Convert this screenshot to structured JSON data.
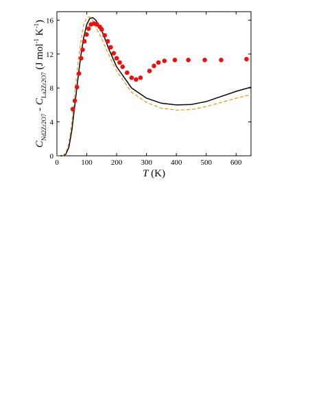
{
  "chart_data": {
    "type": "scatter",
    "x_label": [
      "T",
      " (K)"
    ],
    "y_label": [
      "C",
      "Nd2Zr2O7",
      " - ",
      "C",
      "La2Zr2O7",
      " (J mol",
      "-1",
      " K",
      "-1",
      ")"
    ],
    "xlim": [
      0,
      650
    ],
    "xticks": [
      0,
      100,
      200,
      300,
      400,
      500,
      600
    ],
    "ylim": [
      0,
      17
    ],
    "yticks": [
      0,
      4,
      8,
      12,
      16
    ],
    "series": [
      {
        "kind": "line",
        "color": "#000000",
        "dash": false,
        "x": [
          0,
          20,
          30,
          40,
          50,
          60,
          70,
          80,
          90,
          100,
          110,
          120,
          130,
          150,
          175,
          200,
          250,
          300,
          350,
          400,
          450,
          500,
          550,
          600,
          650
        ],
        "values": [
          0,
          0,
          0.2,
          1,
          3,
          6,
          9,
          11.8,
          14,
          15.5,
          16.2,
          16.3,
          16,
          14.8,
          12.5,
          10.5,
          8,
          6.8,
          6.2,
          6,
          6.05,
          6.4,
          7,
          7.6,
          8.1
        ]
      },
      {
        "kind": "line",
        "color": "#e8901a",
        "dash": true,
        "x": [
          0,
          20,
          30,
          40,
          50,
          60,
          70,
          80,
          90,
          100,
          110,
          120,
          130,
          150,
          175,
          200,
          250,
          300,
          350,
          400,
          450,
          500,
          550,
          600,
          650
        ],
        "values": [
          0,
          0,
          0.4,
          1.5,
          4,
          7.5,
          10.8,
          13.5,
          15.5,
          16.3,
          16.4,
          15.9,
          15.2,
          13.8,
          11.8,
          10,
          7.5,
          6.3,
          5.6,
          5.4,
          5.45,
          5.8,
          6.3,
          6.8,
          7.2
        ]
      },
      {
        "kind": "points",
        "color": "#e8120c",
        "dash": false,
        "x": [
          53,
          60,
          67,
          74,
          81,
          86,
          92,
          99,
          106,
          114,
          124,
          134,
          144,
          150,
          160,
          170,
          180,
          190,
          200,
          210,
          220,
          235,
          250,
          265,
          280,
          310,
          325,
          340,
          360,
          395,
          440,
          495,
          550,
          635
        ],
        "values": [
          5.5,
          6.5,
          8.1,
          9.7,
          11.5,
          12.5,
          13.5,
          14.3,
          15,
          15.5,
          15.6,
          15.5,
          15.2,
          14.9,
          14.2,
          13.5,
          12.8,
          12.1,
          11.5,
          11,
          10.5,
          9.8,
          9.2,
          9,
          9.2,
          10,
          10.6,
          11,
          11.2,
          11.3,
          11.3,
          11.3,
          11.3,
          11.4
        ]
      }
    ]
  }
}
